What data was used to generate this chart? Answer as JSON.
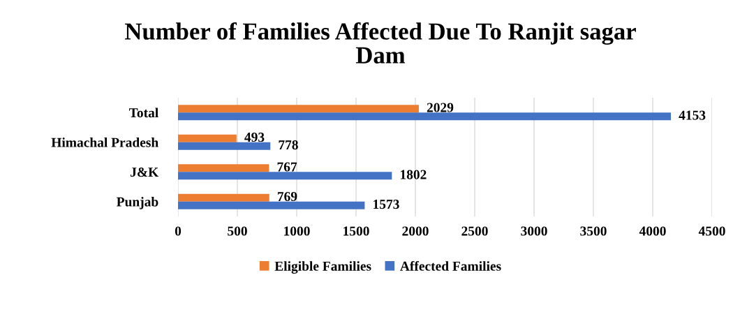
{
  "chart_data": {
    "type": "bar",
    "orientation": "horizontal",
    "title": "Number of Families Affected Due To Ranjit sagar Dam",
    "categories": [
      "Total",
      "Himachal Pradesh",
      "J&K",
      "Punjab"
    ],
    "series": [
      {
        "name": "Eligible Families",
        "color": "#ed7d31",
        "values": [
          2029,
          493,
          767,
          769
        ]
      },
      {
        "name": "Affected Families",
        "color": "#4472c4",
        "values": [
          4153,
          778,
          1802,
          1573
        ]
      }
    ],
    "xlim": [
      0,
      4500
    ],
    "xticks": [
      0,
      500,
      1000,
      1500,
      2000,
      2500,
      3000,
      3500,
      4000,
      4500
    ],
    "grid": "x",
    "legend": "bottom",
    "data_labels": true
  }
}
